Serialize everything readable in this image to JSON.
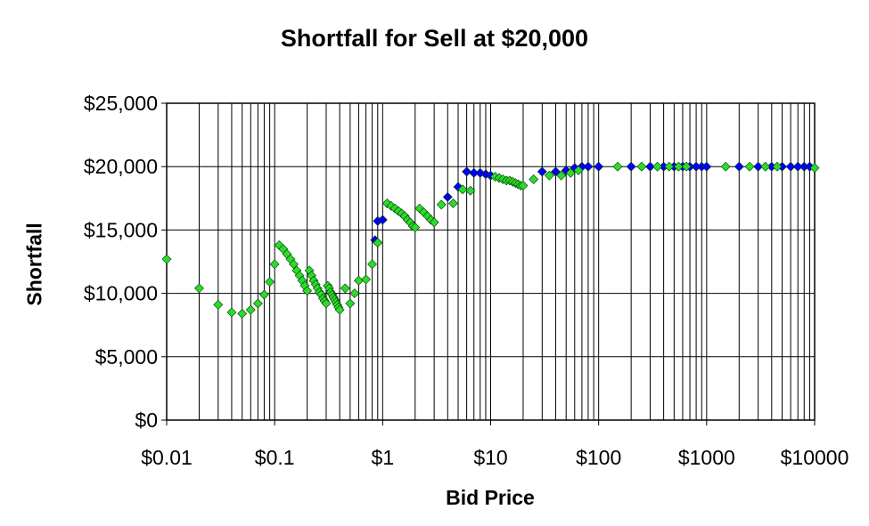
{
  "chart_data": {
    "type": "scatter",
    "title": "Shortfall for Sell at $20,000",
    "xlabel": "Bid Price",
    "ylabel": "Shortfall",
    "x_scale": "log",
    "xlim": [
      0.01,
      10000
    ],
    "ylim": [
      0,
      25000
    ],
    "x_tick_labels": [
      "$0.01",
      "$0.1",
      "$1",
      "$10",
      "$100",
      "$1000",
      "$10000"
    ],
    "x_tick_values": [
      0.01,
      0.1,
      1,
      10,
      100,
      1000,
      10000
    ],
    "y_tick_labels": [
      "$0",
      "$5,000",
      "$10,000",
      "$15,000",
      "$20,000",
      "$25,000"
    ],
    "y_tick_values": [
      0,
      5000,
      10000,
      15000,
      20000,
      25000
    ],
    "grid": {
      "vertical_minor": true,
      "horizontal": true
    },
    "legend": "none",
    "series": [
      {
        "color": "#0000ff",
        "marker": "diamond",
        "x": [
          0.85,
          0.9,
          1.0,
          4.0,
          5.0,
          6.0,
          7.0,
          8.0,
          9.0,
          10.0,
          30.0,
          40.0,
          50.0,
          60.0,
          70.0,
          80.0,
          100.0,
          200.0,
          300.0,
          400.0,
          500.0,
          600.0,
          700.0,
          800.0,
          900.0,
          1000.0,
          2000.0,
          3000.0,
          4000.0,
          5000.0,
          6000.0,
          7000.0,
          8000.0,
          9000.0
        ],
        "y": [
          14200,
          15700,
          15800,
          17600,
          18400,
          19600,
          19500,
          19500,
          19400,
          19300,
          19600,
          19600,
          19700,
          19900,
          20000,
          20000,
          20000,
          20000,
          20000,
          20000,
          20000,
          20000,
          20000,
          20000,
          20000,
          20000,
          20000,
          20000,
          20000,
          20000,
          20000,
          20000,
          20000,
          20000
        ]
      },
      {
        "color": "#2bdb2b",
        "marker": "diamond",
        "x": [
          0.01,
          0.02,
          0.03,
          0.04,
          0.05,
          0.06,
          0.07,
          0.08,
          0.09,
          0.1,
          0.11,
          0.12,
          0.13,
          0.14,
          0.15,
          0.16,
          0.17,
          0.18,
          0.19,
          0.2,
          0.21,
          0.22,
          0.23,
          0.24,
          0.25,
          0.26,
          0.27,
          0.28,
          0.29,
          0.3,
          0.31,
          0.32,
          0.33,
          0.34,
          0.35,
          0.36,
          0.37,
          0.38,
          0.39,
          0.4,
          0.45,
          0.5,
          0.55,
          0.6,
          0.7,
          0.8,
          0.9,
          1.1,
          1.2,
          1.3,
          1.4,
          1.5,
          1.6,
          1.7,
          1.8,
          1.9,
          2.0,
          2.2,
          2.4,
          2.6,
          2.8,
          3.0,
          3.5,
          4.5,
          5.5,
          6.5,
          11.0,
          12.0,
          13.0,
          14.0,
          15.0,
          16.0,
          17.0,
          18.0,
          19.0,
          20.0,
          25.0,
          35.0,
          45.0,
          55.0,
          65.0,
          150.0,
          250.0,
          350.0,
          450.0,
          550.0,
          650.0,
          1500.0,
          2500.0,
          3500.0,
          4500.0,
          10000.0
        ],
        "y": [
          12700,
          10400,
          9100,
          8500,
          8400,
          8700,
          9200,
          9900,
          10900,
          12300,
          13800,
          13500,
          13100,
          12700,
          12300,
          11800,
          11400,
          11000,
          10600,
          10200,
          11800,
          11400,
          11000,
          10700,
          10400,
          10100,
          9900,
          9600,
          9400,
          9200,
          10600,
          10400,
          10100,
          9900,
          9700,
          9500,
          9300,
          9100,
          8900,
          8700,
          10400,
          9200,
          10000,
          11000,
          11100,
          12300,
          14000,
          17100,
          16900,
          16700,
          16500,
          16300,
          16100,
          15800,
          15600,
          15300,
          15200,
          16700,
          16400,
          16100,
          15800,
          15600,
          17000,
          17100,
          18200,
          18100,
          19200,
          19100,
          19000,
          18900,
          18900,
          18800,
          18700,
          18600,
          18500,
          18500,
          19000,
          19300,
          19300,
          19500,
          19700,
          20000,
          20000,
          20000,
          20000,
          20000,
          20000,
          20000,
          20000,
          20000,
          20000,
          19900
        ]
      }
    ]
  }
}
